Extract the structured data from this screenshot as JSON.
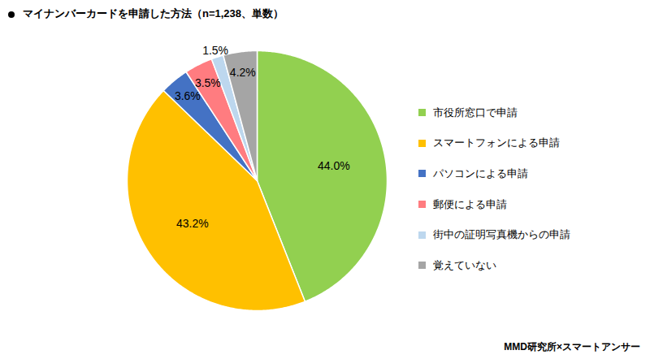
{
  "chart_data": {
    "type": "pie",
    "title": "マイナンバーカードを申請した方法（n=1,238、単数）",
    "caption": "MMD研究所×スマートアンサー",
    "categories": [
      "市役所窓口で申請",
      "スマートフォンによる申請",
      "パソコンによる申請",
      "郵便による申請",
      "街中の証明写真機からの申請",
      "覚えていない"
    ],
    "values": [
      44.0,
      43.2,
      3.6,
      3.5,
      1.5,
      4.2
    ],
    "value_labels": [
      "44.0%",
      "43.2%",
      "3.6%",
      "3.5%",
      "1.5%",
      "4.2%"
    ],
    "colors": [
      "#92d050",
      "#ffc000",
      "#4472c4",
      "#ff7c80",
      "#bdd7ee",
      "#a5a5a5"
    ],
    "data_labels": true,
    "legend": "right"
  }
}
